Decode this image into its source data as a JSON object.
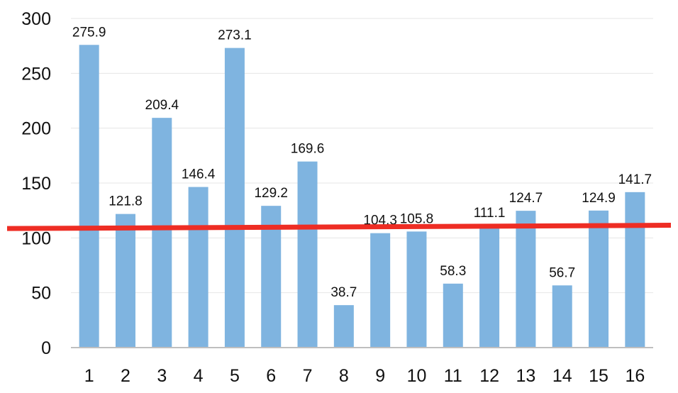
{
  "chart_data": {
    "type": "bar",
    "categories": [
      "1",
      "2",
      "3",
      "4",
      "5",
      "6",
      "7",
      "8",
      "9",
      "10",
      "11",
      "12",
      "13",
      "14",
      "15",
      "16"
    ],
    "values": [
      275.9,
      121.8,
      209.4,
      146.4,
      273.1,
      129.2,
      169.6,
      38.7,
      104.3,
      105.8,
      58.3,
      111.1,
      124.7,
      56.7,
      124.9,
      141.7
    ],
    "data_labels": [
      "275.9",
      "121.8",
      "209.4",
      "146.4",
      "273.1",
      "129.2",
      "169.6",
      "38.7",
      "104.3",
      "105.8",
      "58.3",
      "111.1",
      "124.7",
      "56.7",
      "124.9",
      "141.7"
    ],
    "y_ticks": [
      0,
      50,
      100,
      150,
      200,
      250,
      300
    ],
    "y_tick_labels": [
      "0",
      "50",
      "100",
      "150",
      "200",
      "250",
      "300"
    ],
    "ylim": [
      0,
      300
    ],
    "grid": true,
    "legend": "none",
    "reference_line": {
      "start_value": 108.5,
      "end_value": 111.5
    },
    "colors": {
      "bar": "#7fb4e0",
      "reference_line": "#ee2d24",
      "grid": "#e6e6e6",
      "axis": "#bfbfbf"
    }
  }
}
